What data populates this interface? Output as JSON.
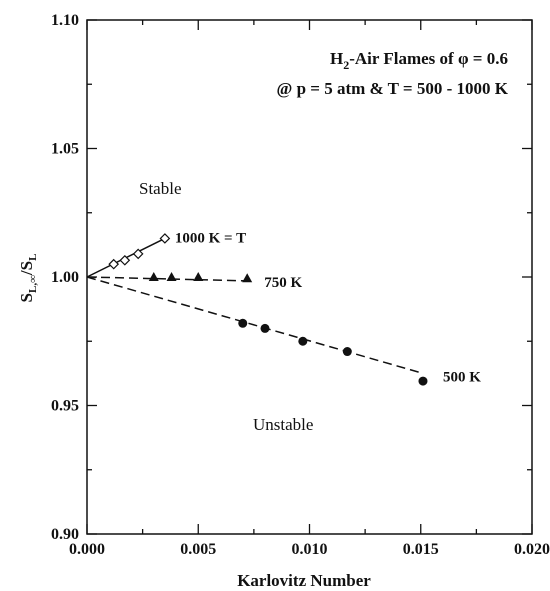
{
  "chart_data": {
    "type": "scatter",
    "title": "",
    "xlabel": "Karlovitz Number",
    "ylabel_main": "S",
    "ylabel_sub1": "L,∞",
    "ylabel_mid": "/S",
    "ylabel_sub2": "L",
    "xlim": [
      0.0,
      0.02
    ],
    "ylim": [
      0.9,
      1.1
    ],
    "xticks": [
      0.0,
      0.005,
      0.01,
      0.015,
      0.02
    ],
    "yticks": [
      0.9,
      0.95,
      1.0,
      1.05,
      1.1
    ],
    "xtick_labels": [
      "0.000",
      "0.005",
      "0.010",
      "0.015",
      "0.020"
    ],
    "ytick_labels": [
      "0.90",
      "0.95",
      "1.00",
      "1.05",
      "1.10"
    ],
    "grid": false,
    "annotation_line1": {
      "prefix": "H",
      "sub": "2",
      "suffix": "-Air Flames of φ = 0.6"
    },
    "annotation_line2": "@ p = 5 atm & T = 500 - 1000 K",
    "region_labels": {
      "stable": "Stable",
      "unstable": "Unstable"
    },
    "series": [
      {
        "label": "1000 K = T",
        "marker": "diamond-open",
        "line": "solid",
        "points": [
          [
            0.0012,
            1.005
          ],
          [
            0.0017,
            1.0065
          ],
          [
            0.0023,
            1.009
          ],
          [
            0.0035,
            1.015
          ]
        ],
        "fit": [
          [
            0.0,
            1.0
          ],
          [
            0.0035,
            1.015
          ]
        ]
      },
      {
        "label": "750 K",
        "marker": "triangle-filled",
        "line": "dashed",
        "points": [
          [
            0.003,
            1.0
          ],
          [
            0.0038,
            1.0
          ],
          [
            0.005,
            1.0
          ],
          [
            0.0072,
            0.9995
          ]
        ],
        "fit": [
          [
            0.0,
            1.0
          ],
          [
            0.0072,
            0.9985
          ]
        ]
      },
      {
        "label": "500 K",
        "marker": "circle-filled",
        "line": "dashed",
        "points": [
          [
            0.007,
            0.982
          ],
          [
            0.008,
            0.98
          ],
          [
            0.0097,
            0.975
          ],
          [
            0.0117,
            0.971
          ],
          [
            0.0151,
            0.9595
          ]
        ],
        "fit": [
          [
            0.0,
            1.0
          ],
          [
            0.0151,
            0.9625
          ]
        ]
      }
    ]
  }
}
